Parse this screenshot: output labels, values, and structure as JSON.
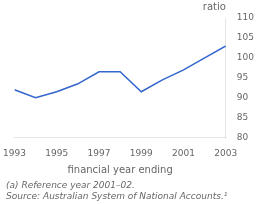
{
  "chart_data": {
    "type": "line",
    "x": [
      1993,
      1994,
      1995,
      1996,
      1997,
      1998,
      1999,
      2000,
      2001,
      2002,
      2003
    ],
    "values": [
      92,
      90,
      91.5,
      93.5,
      96.5,
      96.5,
      91.5,
      94.5,
      97,
      100,
      103
    ],
    "color": "#3366cc",
    "xlabel": "financial year ending",
    "ylabel": "ratio",
    "xlim": [
      1993,
      2003
    ],
    "ylim": [
      80,
      110
    ],
    "xticks": [
      1993,
      1995,
      1997,
      1999,
      2001,
      2003
    ],
    "yticks": [
      80,
      85,
      90,
      95,
      100,
      105,
      110
    ],
    "grid": false,
    "annotations": [
      "(a) Reference year 2001–02.",
      "Source: Australian System of National Accounts.¹"
    ]
  }
}
